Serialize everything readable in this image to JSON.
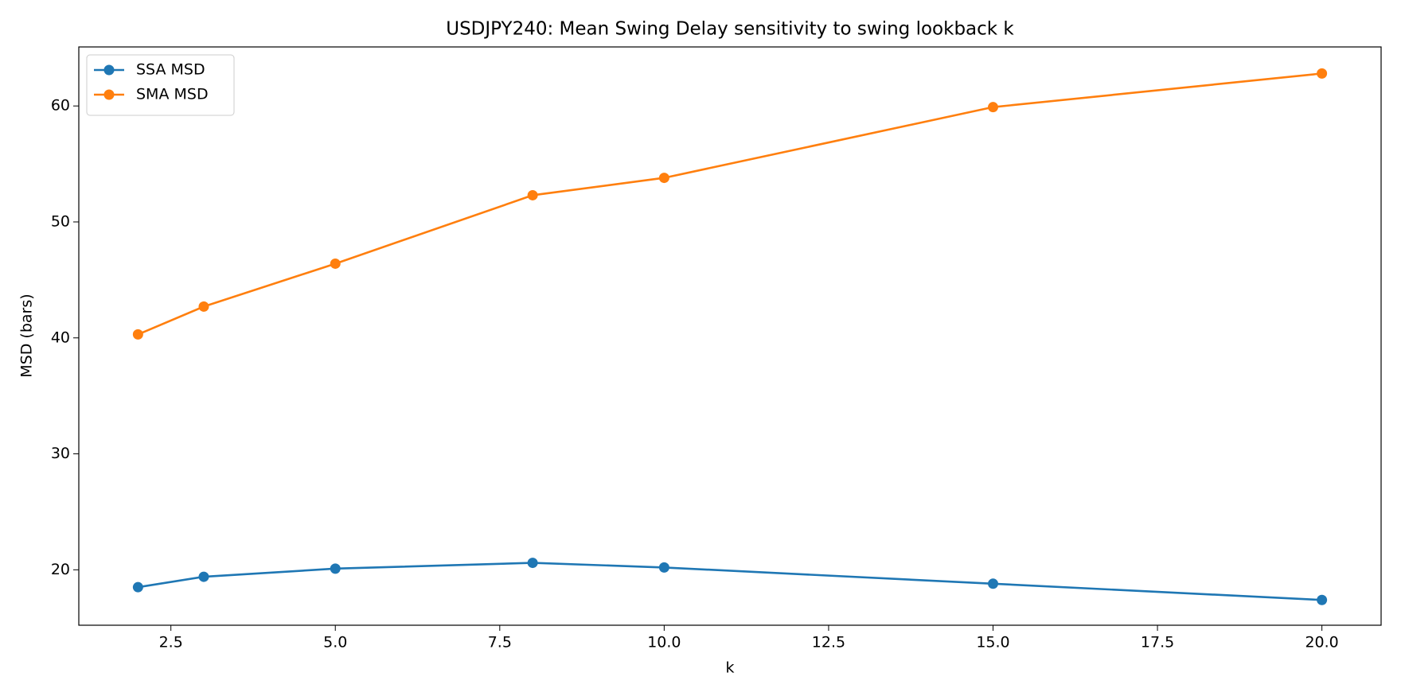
{
  "chart_data": {
    "type": "line",
    "title": "USDJPY240: Mean Swing Delay sensitivity to swing lookback k",
    "x_label": "k",
    "y_label": "MSD (bars)",
    "x": [
      2,
      3,
      5,
      8,
      10,
      15,
      20
    ],
    "series": [
      {
        "name": "SSA MSD",
        "color": "#1f77b4",
        "values": [
          18.5,
          19.4,
          20.1,
          20.6,
          20.2,
          18.8,
          17.4
        ]
      },
      {
        "name": "SMA MSD",
        "color": "#ff7f0e",
        "values": [
          40.3,
          42.7,
          46.4,
          52.3,
          53.8,
          59.9,
          62.8
        ]
      }
    ],
    "xlim": [
      1.1,
      20.9
    ],
    "xticks": [
      2.5,
      {
        "value": 5,
        "label": "5.0"
      },
      7.5,
      {
        "value": 10,
        "label": "10.0"
      },
      12.5,
      {
        "value": 15,
        "label": "15.0"
      },
      17.5,
      {
        "value": 20,
        "label": "20.0"
      }
    ],
    "ylim": [
      15.22,
      65.09
    ],
    "yticks": [
      20,
      30,
      40,
      50,
      60
    ],
    "grid": false,
    "legend": "upper left"
  }
}
